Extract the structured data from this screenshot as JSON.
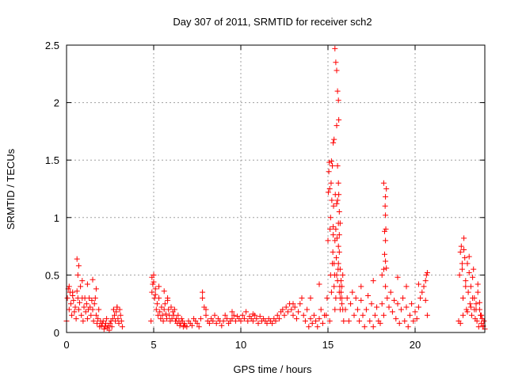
{
  "chart_data": {
    "type": "scatter",
    "title": "Day 307 of 2011, SRMTID for receiver sch2",
    "xlabel": "GPS time / hours",
    "ylabel": "SRMTID / TECUs",
    "xlim": [
      0,
      24
    ],
    "ylim": [
      0,
      2.5
    ],
    "xticks": [
      "0",
      "5",
      "10",
      "15",
      "20"
    ],
    "yticks": [
      "0",
      "0.5",
      "1",
      "1.5",
      "2",
      "2.5"
    ],
    "xtick_values": [
      0,
      5,
      10,
      15,
      20
    ],
    "ytick_values": [
      0,
      0.5,
      1,
      1.5,
      2,
      2.5
    ],
    "grid": true,
    "marker": "+",
    "color": "#ff0000",
    "series": [
      {
        "x": [
          0.0,
          0.05,
          0.1,
          0.15,
          0.2,
          0.25,
          0.3,
          0.35,
          0.4,
          0.45,
          0.5,
          0.55,
          0.6,
          0.65,
          0.7,
          0.75,
          0.8,
          0.85,
          0.9,
          0.95,
          1.0,
          1.05,
          1.1,
          1.15,
          1.2,
          1.25,
          1.3,
          1.35,
          1.4,
          1.45,
          1.5,
          1.55,
          1.6,
          1.65,
          1.7,
          1.75,
          1.8,
          1.85,
          1.9,
          1.95,
          2.0,
          2.05,
          2.1,
          2.15,
          2.2,
          2.25,
          2.3,
          2.35,
          2.4,
          2.45,
          2.5,
          2.55,
          2.6,
          2.65,
          2.7,
          2.75,
          2.8,
          2.85,
          2.9,
          2.95,
          3.0,
          3.05,
          3.1,
          3.15,
          3.2,
          0.15,
          0.35,
          0.6,
          0.65,
          0.7,
          0.9,
          1.2,
          1.5,
          1.7,
          2.7,
          2.9,
          4.85,
          4.9,
          4.95,
          5.0,
          5.05,
          5.1,
          5.15,
          5.2,
          5.25,
          5.3,
          5.35,
          5.4,
          5.45,
          5.5,
          5.55,
          5.6,
          5.65,
          5.7,
          5.75,
          5.8,
          5.85,
          5.9,
          5.95,
          6.0,
          6.05,
          6.1,
          6.15,
          6.2,
          6.25,
          6.3,
          6.35,
          6.4,
          6.45,
          6.5,
          6.55,
          6.6,
          6.65,
          6.7,
          6.75,
          6.8,
          4.9,
          5.0,
          5.1,
          5.3,
          5.6,
          5.8,
          6.9,
          7.0,
          7.1,
          7.2,
          7.3,
          7.4,
          7.5,
          7.6,
          7.7,
          7.8,
          7.9,
          8.0,
          8.1,
          8.2,
          8.3,
          8.4,
          8.5,
          8.6,
          8.7,
          8.8,
          8.9,
          9.0,
          9.1,
          9.2,
          9.3,
          9.4,
          9.5,
          9.6,
          9.7,
          9.8,
          9.9,
          10.0,
          10.1,
          10.2,
          10.3,
          10.4,
          10.5,
          10.6,
          10.7,
          10.8,
          10.9,
          11.0,
          11.1,
          11.2,
          11.3,
          11.4,
          11.5,
          11.6,
          11.7,
          11.8,
          11.9,
          12.0,
          12.1,
          12.2,
          12.3,
          12.4,
          12.5,
          12.6,
          12.7,
          12.8,
          12.9,
          13.0,
          13.1,
          13.2,
          13.3,
          13.4,
          13.5,
          13.6,
          13.7,
          13.8,
          13.9,
          14.0,
          14.1,
          14.2,
          14.3,
          14.4,
          14.5,
          14.6,
          14.7,
          14.8,
          7.8,
          8.0,
          9.5,
          10.7,
          13.0,
          14.0,
          14.5,
          14.9,
          14.95,
          15.0,
          15.02,
          15.05,
          15.08,
          15.1,
          15.12,
          15.15,
          15.18,
          15.2,
          15.22,
          15.25,
          15.28,
          15.3,
          15.32,
          15.35,
          15.38,
          15.4,
          15.42,
          15.45,
          15.48,
          15.5,
          15.52,
          15.55,
          15.58,
          15.6,
          15.62,
          15.65,
          15.68,
          15.7,
          15.75,
          15.8,
          15.85,
          15.9,
          15.1,
          15.15,
          15.2,
          15.25,
          15.3,
          15.35,
          15.4,
          15.45,
          15.5,
          15.55,
          15.6,
          15.65,
          15.7,
          15.4,
          15.45,
          15.5,
          15.55,
          15.6,
          15.62,
          15.3,
          15.35,
          15.5,
          15.55,
          15.6,
          15.65,
          15.7,
          15.6,
          15.65,
          15.7,
          15.75,
          15.8,
          15.8,
          15.85,
          16.0,
          16.1,
          16.2,
          16.3,
          16.4,
          16.5,
          16.6,
          16.7,
          16.8,
          16.9,
          17.0,
          17.1,
          17.2,
          17.3,
          17.4,
          17.5,
          17.6,
          17.7,
          17.8,
          17.9,
          18.0,
          18.1,
          18.2,
          18.3,
          18.4,
          18.5,
          18.6,
          18.7,
          18.8,
          18.9,
          19.0,
          19.1,
          19.2,
          19.3,
          19.4,
          19.5,
          19.6,
          19.7,
          19.8,
          19.9,
          20.0,
          20.1,
          20.2,
          20.3,
          20.4,
          20.5,
          20.6,
          20.7,
          16.9,
          17.6,
          18.1,
          18.2,
          18.25,
          18.3,
          18.3,
          18.35,
          19.0,
          19.5,
          20.2,
          20.6,
          20.65,
          20.7,
          18.25,
          18.3,
          18.3,
          18.35,
          18.2,
          18.28,
          18.32,
          22.5,
          22.55,
          22.6,
          22.65,
          22.7,
          22.75,
          22.8,
          22.85,
          22.9,
          22.95,
          23.0,
          23.05,
          23.1,
          23.15,
          23.2,
          23.25,
          23.3,
          23.35,
          23.4,
          23.45,
          23.5,
          23.55,
          23.6,
          23.65,
          23.7,
          23.75,
          23.8,
          23.85,
          23.9,
          23.95,
          24.0,
          22.6,
          22.7,
          22.75,
          22.8,
          22.9,
          23.0,
          23.1,
          23.2,
          23.3,
          23.4,
          23.5,
          23.6,
          23.7,
          23.8,
          23.9
        ],
        "y": [
          0.1,
          0.3,
          0.38,
          0.2,
          0.35,
          0.25,
          0.15,
          0.32,
          0.28,
          0.18,
          0.22,
          0.12,
          0.36,
          0.3,
          0.2,
          0.26,
          0.4,
          0.15,
          0.3,
          0.1,
          0.22,
          0.3,
          0.18,
          0.25,
          0.12,
          0.2,
          0.3,
          0.22,
          0.15,
          0.28,
          0.2,
          0.1,
          0.25,
          0.3,
          0.15,
          0.08,
          0.12,
          0.2,
          0.05,
          0.1,
          0.06,
          0.08,
          0.1,
          0.03,
          0.05,
          0.08,
          0.12,
          0.04,
          0.06,
          0.02,
          0.08,
          0.1,
          0.05,
          0.12,
          0.2,
          0.15,
          0.1,
          0.18,
          0.22,
          0.12,
          0.08,
          0.2,
          0.15,
          0.1,
          0.05,
          0.4,
          0.35,
          0.64,
          0.5,
          0.58,
          0.45,
          0.42,
          0.46,
          0.38,
          0.2,
          0.22,
          0.1,
          0.35,
          0.42,
          0.5,
          0.3,
          0.38,
          0.2,
          0.25,
          0.15,
          0.3,
          0.18,
          0.12,
          0.22,
          0.15,
          0.1,
          0.2,
          0.25,
          0.16,
          0.12,
          0.28,
          0.2,
          0.15,
          0.1,
          0.22,
          0.12,
          0.18,
          0.15,
          0.2,
          0.1,
          0.12,
          0.08,
          0.15,
          0.1,
          0.06,
          0.08,
          0.12,
          0.1,
          0.05,
          0.08,
          0.06,
          0.48,
          0.44,
          0.33,
          0.4,
          0.36,
          0.3,
          0.05,
          0.1,
          0.08,
          0.06,
          0.12,
          0.1,
          0.08,
          0.05,
          0.12,
          0.3,
          0.22,
          0.15,
          0.1,
          0.08,
          0.12,
          0.1,
          0.15,
          0.08,
          0.12,
          0.1,
          0.06,
          0.1,
          0.15,
          0.12,
          0.08,
          0.1,
          0.12,
          0.15,
          0.1,
          0.14,
          0.12,
          0.1,
          0.15,
          0.12,
          0.18,
          0.1,
          0.14,
          0.12,
          0.1,
          0.15,
          0.12,
          0.08,
          0.14,
          0.1,
          0.12,
          0.1,
          0.08,
          0.12,
          0.1,
          0.08,
          0.12,
          0.1,
          0.15,
          0.12,
          0.18,
          0.2,
          0.15,
          0.22,
          0.18,
          0.25,
          0.2,
          0.15,
          0.22,
          0.12,
          0.18,
          0.25,
          0.3,
          0.15,
          0.1,
          0.2,
          0.05,
          0.12,
          0.08,
          0.15,
          0.1,
          0.05,
          0.12,
          0.2,
          0.08,
          0.15,
          0.35,
          0.2,
          0.18,
          0.16,
          0.25,
          0.3,
          0.42,
          0.15,
          0.3,
          0.8,
          1.22,
          1.4,
          1.48,
          1.25,
          0.9,
          1.0,
          1.3,
          1.49,
          1.15,
          1.45,
          0.7,
          0.92,
          1.1,
          0.6,
          0.5,
          0.8,
          1.2,
          0.9,
          0.65,
          1.12,
          0.82,
          1.15,
          0.55,
          0.95,
          1.2,
          0.7,
          0.4,
          0.3,
          0.35,
          0.25,
          0.2,
          0.1,
          0.1,
          0.5,
          0.35,
          0.6,
          0.85,
          0.4,
          0.2,
          0.3,
          0.5,
          0.45,
          0.6,
          0.35,
          0.2,
          2.47,
          2.35,
          2.28,
          2.1,
          2.02,
          1.85,
          1.65,
          1.68,
          1.8,
          1.45,
          1.3,
          1.05,
          0.95,
          0.75,
          0.85,
          0.55,
          0.45,
          0.4,
          0.3,
          0.5,
          0.2,
          0.3,
          0.1,
          0.25,
          0.35,
          0.15,
          0.3,
          0.2,
          0.1,
          0.28,
          0.15,
          0.05,
          0.2,
          0.32,
          0.1,
          0.25,
          0.05,
          0.15,
          0.22,
          0.1,
          0.08,
          0.25,
          0.15,
          0.4,
          0.3,
          0.22,
          0.35,
          0.18,
          0.28,
          0.12,
          0.25,
          0.08,
          0.2,
          0.3,
          0.1,
          0.22,
          0.05,
          0.15,
          0.25,
          0.1,
          0.18,
          0.12,
          0.22,
          0.3,
          0.35,
          0.4,
          0.28,
          0.15,
          0.4,
          0.45,
          0.5,
          0.55,
          0.88,
          1.02,
          1.18,
          1.25,
          0.48,
          0.4,
          0.42,
          0.45,
          0.5,
          0.52,
          0.68,
          0.8,
          0.62,
          0.56,
          1.3,
          1.1,
          0.9,
          0.1,
          0.5,
          0.7,
          0.75,
          0.6,
          0.3,
          0.82,
          0.65,
          0.45,
          0.2,
          0.6,
          0.35,
          0.52,
          0.25,
          0.4,
          0.15,
          0.3,
          0.55,
          0.2,
          0.12,
          0.25,
          0.1,
          0.35,
          0.05,
          0.2,
          0.15,
          0.08,
          0.12,
          0.05,
          0.1,
          0.03,
          0.08,
          0.55,
          0.15,
          0.72,
          0.4,
          0.18,
          0.66,
          0.22,
          0.48,
          0.3,
          0.2,
          0.42,
          0.26,
          0.15,
          0.06
        ]
      }
    ]
  }
}
